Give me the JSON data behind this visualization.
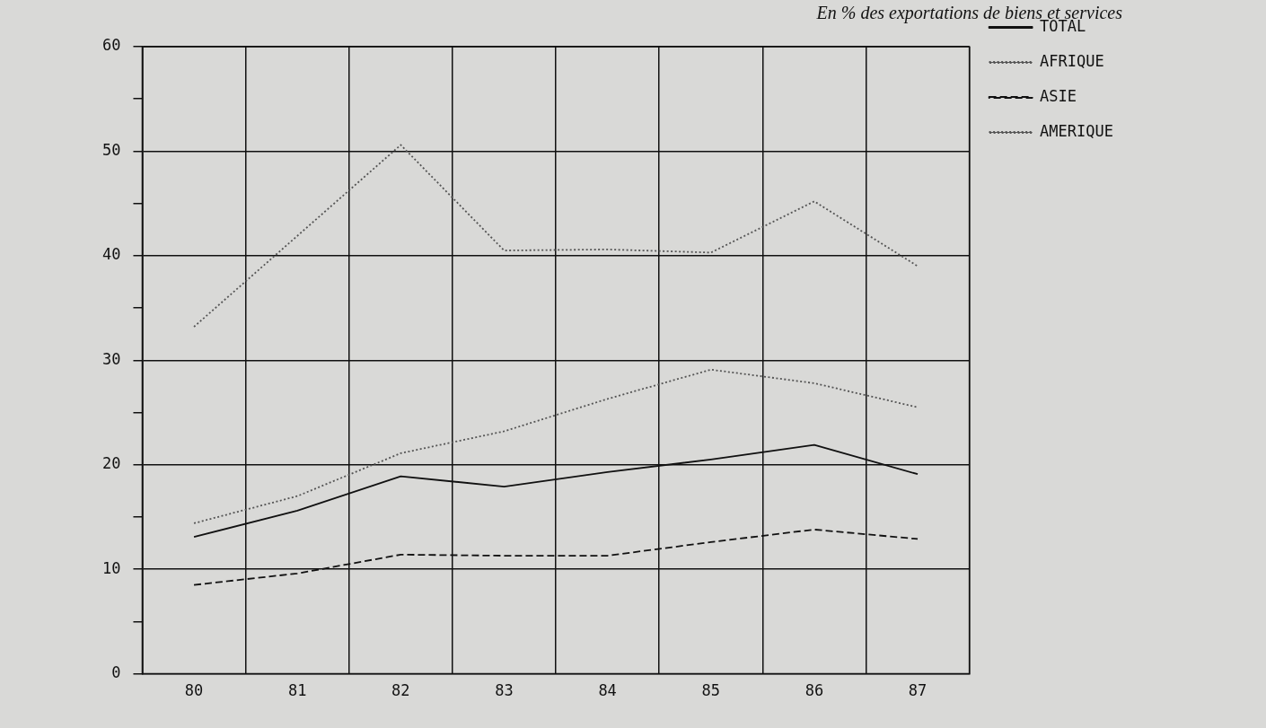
{
  "chart_data": {
    "type": "line",
    "title": "En % des exportations de biens et services",
    "categories": [
      "80",
      "81",
      "82",
      "83",
      "84",
      "85",
      "86",
      "87"
    ],
    "series": [
      {
        "name": "TOTAL",
        "color": "#111111",
        "line_style": "solid",
        "values": [
          13.1,
          15.6,
          18.9,
          17.9,
          19.3,
          20.5,
          21.9,
          19.1
        ]
      },
      {
        "name": "AFRIQUE",
        "color": "#555555",
        "line_style": "dotted",
        "values": [
          14.4,
          17.0,
          21.1,
          23.2,
          26.3,
          29.1,
          27.8,
          25.5
        ]
      },
      {
        "name": "ASIE",
        "color": "#111111",
        "line_style": "dashed",
        "values": [
          8.5,
          9.6,
          11.4,
          11.3,
          11.3,
          12.6,
          13.8,
          12.9
        ]
      },
      {
        "name": "AMERIQUE",
        "color": "#555555",
        "line_style": "dotted",
        "values": [
          33.2,
          41.9,
          50.6,
          40.5,
          40.6,
          40.3,
          45.2,
          39
        ]
      }
    ],
    "ylim": [
      0,
      60
    ],
    "yticks": [
      0,
      {
        "value": 5,
        "label": null
      },
      10,
      {
        "value": 15,
        "label": null
      },
      20,
      {
        "value": 25,
        "label": null
      },
      30,
      {
        "value": 35,
        "label": null
      },
      40,
      {
        "value": 45,
        "label": null
      },
      50,
      {
        "value": 55,
        "label": null
      },
      60
    ],
    "grid": true,
    "legend": "top right",
    "marker": "none"
  }
}
